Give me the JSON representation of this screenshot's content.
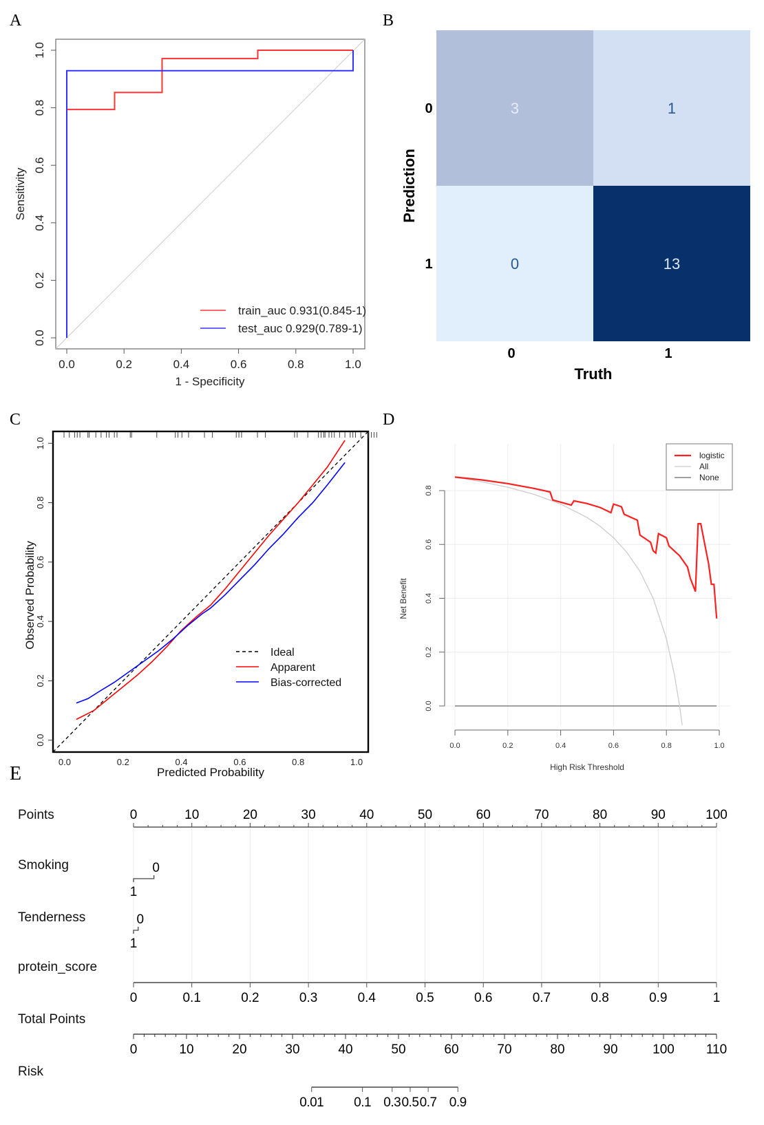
{
  "panel_labels": [
    "A",
    "B",
    "C",
    "D",
    "E"
  ],
  "chart_data": [
    {
      "id": "A",
      "type": "line",
      "subtype": "roc",
      "title": "",
      "xlabel": "1 - Specificity",
      "ylabel": "Sensitivity",
      "xlim": [
        0,
        1
      ],
      "ylim": [
        0,
        1
      ],
      "xticks": [
        "0.0",
        "0.2",
        "0.4",
        "0.6",
        "0.8",
        "1.0"
      ],
      "yticks": [
        "0.0",
        "0.2",
        "0.4",
        "0.6",
        "0.8",
        "1.0"
      ],
      "legend_position": "bottom-right",
      "reference_line": {
        "name": "chance",
        "color": "#cccccc",
        "points": [
          [
            0,
            0
          ],
          [
            1,
            1
          ]
        ]
      },
      "series": [
        {
          "name": "train_auc",
          "label": "train_auc 0.931(0.845-1)",
          "color": "#ff3333",
          "points": [
            [
              0,
              0
            ],
            [
              0,
              0.794
            ],
            [
              0.167,
              0.794
            ],
            [
              0.167,
              0.853
            ],
            [
              0.333,
              0.853
            ],
            [
              0.333,
              0.971
            ],
            [
              0.667,
              0.971
            ],
            [
              0.667,
              1.0
            ],
            [
              1.0,
              1.0
            ]
          ]
        },
        {
          "name": "test_auc",
          "label": "test_auc  0.929(0.789-1)",
          "color": "#3333ff",
          "points": [
            [
              0,
              0
            ],
            [
              0,
              0.929
            ],
            [
              1.0,
              0.929
            ],
            [
              1.0,
              1.0
            ]
          ]
        }
      ]
    },
    {
      "id": "B",
      "type": "heatmap",
      "subtype": "confusion_matrix",
      "xlabel": "Truth",
      "ylabel": "Prediction",
      "x_categories": [
        "0",
        "1"
      ],
      "y_categories": [
        "0",
        "1"
      ],
      "cells": [
        {
          "prediction": "0",
          "truth": "0",
          "value": 3,
          "fill": "#b1bfdb",
          "text_color": "#e6eefa"
        },
        {
          "prediction": "0",
          "truth": "1",
          "value": 1,
          "fill": "#d3e0f3",
          "text_color": "#2a579a"
        },
        {
          "prediction": "1",
          "truth": "0",
          "value": 0,
          "fill": "#e1eefc",
          "text_color": "#2a579a"
        },
        {
          "prediction": "1",
          "truth": "1",
          "value": 13,
          "fill": "#08306b",
          "text_color": "#dce8f6"
        }
      ]
    },
    {
      "id": "C",
      "type": "line",
      "subtype": "calibration",
      "xlabel": "Predicted Probability",
      "ylabel": "Observed Probability",
      "xlim": [
        -0.04,
        1.04
      ],
      "ylim": [
        -0.04,
        1.04
      ],
      "xticks": [
        "0.0",
        "0.2",
        "0.4",
        "0.6",
        "0.8",
        "1.0"
      ],
      "yticks": [
        "0.0",
        "0.2",
        "0.4",
        "0.6",
        "0.8",
        "1.0"
      ],
      "legend_position": "center-right",
      "rug": [
        0.0,
        0.02,
        0.04,
        0.05,
        0.06,
        0.09,
        0.095,
        0.12,
        0.14,
        0.16,
        0.17,
        0.19,
        0.2,
        0.25,
        0.255,
        0.35,
        0.42,
        0.43,
        0.445,
        0.47,
        0.53,
        0.56,
        0.65,
        0.66,
        0.67,
        0.73,
        0.76,
        0.87,
        0.88,
        0.92,
        0.96,
        0.97,
        0.98,
        0.985,
        1.0,
        1.01,
        1.02,
        1.04,
        1.06,
        1.08,
        1.09,
        1.1,
        1.12,
        1.15,
        1.16,
        1.17,
        1.18
      ],
      "series": [
        {
          "name": "Ideal",
          "color": "#000000",
          "dash": true,
          "points": [
            [
              -0.04,
              -0.04
            ],
            [
              1.04,
              1.04
            ]
          ]
        },
        {
          "name": "Apparent",
          "color": "#ff0000",
          "dash": false,
          "points": [
            [
              0.04,
              0.07
            ],
            [
              0.1,
              0.1
            ],
            [
              0.15,
              0.14
            ],
            [
              0.2,
              0.18
            ],
            [
              0.25,
              0.22
            ],
            [
              0.3,
              0.265
            ],
            [
              0.35,
              0.315
            ],
            [
              0.4,
              0.37
            ],
            [
              0.45,
              0.415
            ],
            [
              0.5,
              0.455
            ],
            [
              0.55,
              0.51
            ],
            [
              0.6,
              0.57
            ],
            [
              0.65,
              0.63
            ],
            [
              0.7,
              0.69
            ],
            [
              0.75,
              0.745
            ],
            [
              0.8,
              0.8
            ],
            [
              0.85,
              0.86
            ],
            [
              0.9,
              0.92
            ],
            [
              0.96,
              1.01
            ]
          ]
        },
        {
          "name": "Bias-corrected",
          "color": "#0000ff",
          "dash": false,
          "points": [
            [
              0.04,
              0.125
            ],
            [
              0.08,
              0.14
            ],
            [
              0.12,
              0.165
            ],
            [
              0.17,
              0.195
            ],
            [
              0.22,
              0.23
            ],
            [
              0.27,
              0.265
            ],
            [
              0.32,
              0.3
            ],
            [
              0.37,
              0.34
            ],
            [
              0.42,
              0.385
            ],
            [
              0.47,
              0.425
            ],
            [
              0.5,
              0.445
            ],
            [
              0.55,
              0.49
            ],
            [
              0.6,
              0.54
            ],
            [
              0.65,
              0.59
            ],
            [
              0.7,
              0.645
            ],
            [
              0.75,
              0.695
            ],
            [
              0.8,
              0.75
            ],
            [
              0.85,
              0.8
            ],
            [
              0.9,
              0.86
            ],
            [
              0.96,
              0.935
            ]
          ]
        }
      ]
    },
    {
      "id": "D",
      "type": "line",
      "subtype": "decision_curve",
      "xlabel": "High Risk Threshold",
      "ylabel": "Net Benefit",
      "xlim": [
        0,
        1
      ],
      "ylim": [
        -0.1,
        0.9
      ],
      "xticks": [
        "0.0",
        "0.2",
        "0.4",
        "0.6",
        "0.8",
        "1.0"
      ],
      "yticks": [
        "0.0",
        "0.2",
        "0.4",
        "0.6",
        "0.8"
      ],
      "grid": true,
      "legend_position": "top-right",
      "series": [
        {
          "name": "logistic",
          "color": "#ff2020",
          "points": [
            [
              0,
              0.85
            ],
            [
              0.1,
              0.84
            ],
            [
              0.2,
              0.826
            ],
            [
              0.3,
              0.808
            ],
            [
              0.36,
              0.795
            ],
            [
              0.37,
              0.765
            ],
            [
              0.44,
              0.746
            ],
            [
              0.45,
              0.762
            ],
            [
              0.5,
              0.752
            ],
            [
              0.55,
              0.737
            ],
            [
              0.59,
              0.718
            ],
            [
              0.6,
              0.75
            ],
            [
              0.63,
              0.74
            ],
            [
              0.64,
              0.712
            ],
            [
              0.69,
              0.69
            ],
            [
              0.7,
              0.635
            ],
            [
              0.74,
              0.608
            ],
            [
              0.75,
              0.576
            ],
            [
              0.76,
              0.568
            ],
            [
              0.77,
              0.64
            ],
            [
              0.8,
              0.625
            ],
            [
              0.81,
              0.594
            ],
            [
              0.85,
              0.558
            ],
            [
              0.88,
              0.516
            ],
            [
              0.89,
              0.475
            ],
            [
              0.91,
              0.425
            ],
            [
              0.92,
              0.677
            ],
            [
              0.93,
              0.677
            ],
            [
              0.96,
              0.527
            ],
            [
              0.97,
              0.452
            ],
            [
              0.98,
              0.452
            ],
            [
              0.99,
              0.325
            ]
          ]
        },
        {
          "name": "All",
          "color": "#cccccc",
          "points": [
            [
              0,
              0.85
            ],
            [
              0.1,
              0.833
            ],
            [
              0.2,
              0.8125
            ],
            [
              0.3,
              0.786
            ],
            [
              0.4,
              0.75
            ],
            [
              0.5,
              0.7
            ],
            [
              0.55,
              0.667
            ],
            [
              0.6,
              0.625
            ],
            [
              0.65,
              0.571
            ],
            [
              0.7,
              0.5
            ],
            [
              0.75,
              0.4
            ],
            [
              0.8,
              0.25
            ],
            [
              0.83,
              0.118
            ],
            [
              0.85,
              0.0
            ],
            [
              0.86,
              -0.071
            ]
          ]
        },
        {
          "name": "None",
          "color": "#808080",
          "points": [
            [
              0,
              0
            ],
            [
              0.99,
              0
            ]
          ]
        }
      ]
    },
    {
      "id": "E",
      "type": "table",
      "subtype": "nomogram",
      "rows": [
        {
          "label": "Points",
          "kind": "points",
          "range": [
            0,
            100
          ],
          "ticks": [
            "0",
            "10",
            "20",
            "30",
            "40",
            "50",
            "60",
            "70",
            "80",
            "90",
            "100"
          ]
        },
        {
          "label": "Smoking",
          "kind": "categorical",
          "levels": [
            {
              "value": "1",
              "points": 0
            },
            {
              "value": "0",
              "points": 3.5
            }
          ]
        },
        {
          "label": "Tenderness",
          "kind": "categorical",
          "levels": [
            {
              "value": "1",
              "points": 0
            },
            {
              "value": "0",
              "points": 0.8
            }
          ]
        },
        {
          "label": "protein_score",
          "kind": "continuous",
          "range": [
            0,
            1
          ],
          "points_range": [
            0,
            100
          ],
          "ticks": [
            "0",
            "0.1",
            "0.2",
            "0.3",
            "0.4",
            "0.5",
            "0.6",
            "0.7",
            "0.8",
            "0.9",
            "1"
          ]
        },
        {
          "label": "Total Points",
          "kind": "total",
          "range": [
            0,
            110
          ],
          "ticks": [
            "0",
            "10",
            "20",
            "30",
            "40",
            "50",
            "60",
            "70",
            "80",
            "90",
            "100",
            "110"
          ]
        },
        {
          "label": "Risk",
          "kind": "risk",
          "ticks": [
            {
              "label": "0.01",
              "total_points": 33.6
            },
            {
              "label": "0.1",
              "total_points": 43.2
            },
            {
              "label": "0.3",
              "total_points": 48.8
            },
            {
              "label": "0.5",
              "total_points": 52.2
            },
            {
              "label": "0.7",
              "total_points": 55.6
            },
            {
              "label": "0.9",
              "total_points": 61.2
            }
          ]
        }
      ]
    }
  ]
}
